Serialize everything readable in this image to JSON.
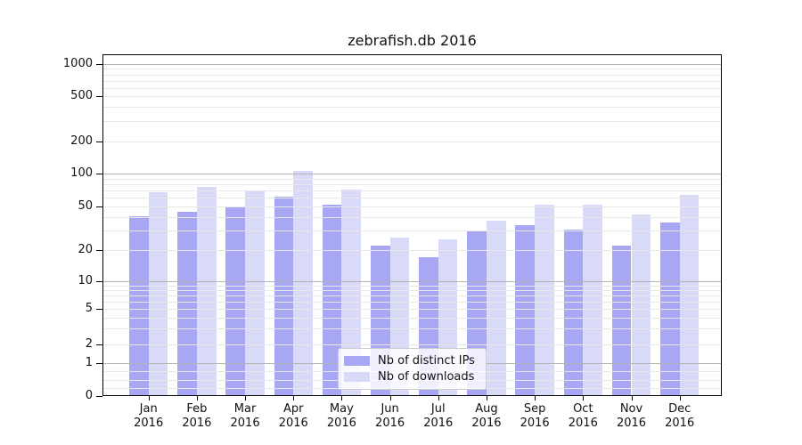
{
  "title": "zebrafish.db 2016",
  "chart_data": {
    "type": "bar",
    "title": "zebrafish.db 2016",
    "categories": [
      "Jan 2016",
      "Feb 2016",
      "Mar 2016",
      "Apr 2016",
      "May 2016",
      "Jun 2016",
      "Jul 2016",
      "Aug 2016",
      "Sep 2016",
      "Oct 2016",
      "Nov 2016",
      "Dec 2016"
    ],
    "series": [
      {
        "name": "Nb of distinct IPs",
        "color": "#a7a7f3",
        "values": [
          41,
          45,
          50,
          62,
          52,
          22,
          17,
          30,
          34,
          31,
          22,
          36
        ]
      },
      {
        "name": "Nb of downloads",
        "color": "#d9d9f8",
        "values": [
          67,
          76,
          70,
          106,
          72,
          26,
          25,
          37,
          52,
          52,
          42,
          64
        ]
      }
    ],
    "xlabel": "",
    "ylabel": "",
    "y_scale": "symlog",
    "y_ticks": [
      0,
      1,
      2,
      5,
      10,
      20,
      50,
      100,
      200,
      500,
      1000
    ],
    "ylim": [
      0,
      1200
    ],
    "grid": "major and minor horizontal gridlines, drawn above bars",
    "legend_position": "inside plot, lower center-left"
  },
  "legend": {
    "items": [
      {
        "label": "Nb of distinct IPs",
        "swatch_color": "#a7a7f3"
      },
      {
        "label": "Nb of downloads",
        "swatch_color": "#d9d9f8"
      }
    ]
  },
  "colors": {
    "background": "#ffffff",
    "bar_distinct_ips": "#a7a7f3",
    "bar_downloads": "#d9d9f8",
    "grid_major": "#b4b4b4",
    "grid_minor": "#e8e8e8",
    "axis_spine": "#000000",
    "tick_text": "#111111",
    "legend_border": "#cccccc"
  }
}
